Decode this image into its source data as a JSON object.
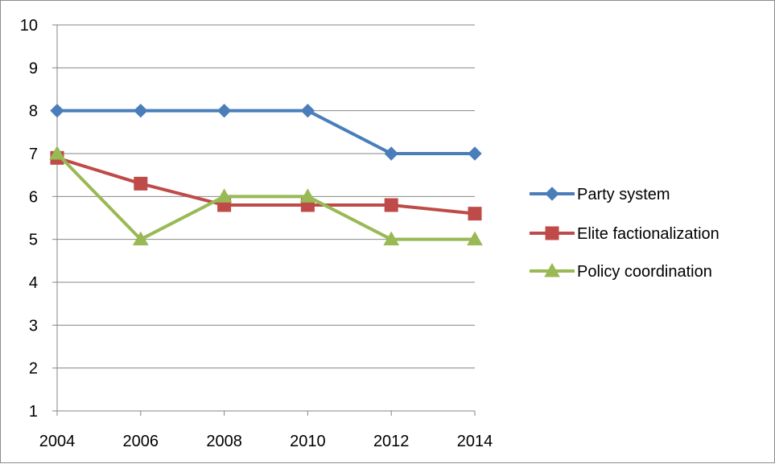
{
  "chart_data": {
    "type": "line",
    "title": "",
    "xlabel": "",
    "ylabel": "",
    "x": [
      2004,
      2006,
      2008,
      2010,
      2012,
      2014
    ],
    "x_tick_labels": [
      "2004",
      "2006",
      "2008",
      "2010",
      "2012",
      "2014"
    ],
    "y_tick_labels": [
      "1",
      "2",
      "3",
      "4",
      "5",
      "6",
      "7",
      "8",
      "9",
      "10"
    ],
    "ylim": [
      1,
      10
    ],
    "grid": true,
    "legend_position": "right",
    "series": [
      {
        "name": "Party system",
        "values": [
          8,
          8,
          8,
          8,
          7,
          7
        ],
        "color": "#4a7ebb",
        "marker": "diamond"
      },
      {
        "name": "Elite factionalization",
        "values": [
          6.9,
          6.3,
          5.8,
          5.8,
          5.8,
          5.6
        ],
        "color": "#be4b48",
        "marker": "square"
      },
      {
        "name": "Policy coordination",
        "values": [
          7,
          5,
          6,
          6,
          5,
          5
        ],
        "color": "#98b954",
        "marker": "triangle"
      }
    ]
  }
}
